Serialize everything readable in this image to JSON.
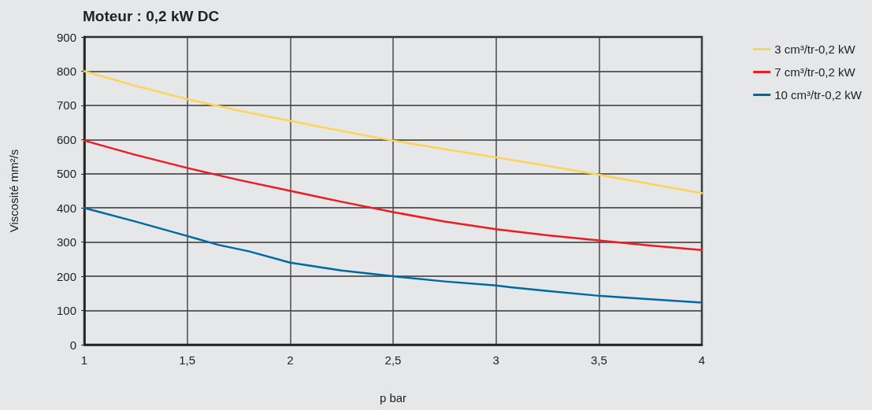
{
  "chart_data": {
    "type": "line",
    "title": "Moteur : 0,2 kW DC",
    "xlabel": "p bar",
    "ylabel": "Viscosité mm²/s",
    "xlim": [
      1,
      4
    ],
    "xticks": [
      1,
      {
        "value": 1.5,
        "label": "1,5"
      },
      2,
      {
        "value": 2.5,
        "label": "2,5"
      },
      3,
      {
        "value": 3.5,
        "label": "3,5"
      },
      4
    ],
    "ylim": [
      0,
      900
    ],
    "yticks": [
      0,
      100,
      200,
      300,
      400,
      500,
      600,
      700,
      800,
      900
    ],
    "grid": true,
    "legend": "top right",
    "marker": "none",
    "line_style": "solid",
    "series": [
      {
        "name": "3 cm³/tr-0,2 kW",
        "color": "#fdd457",
        "x": [
          1,
          1.25,
          1.5,
          1.75,
          2,
          2.25,
          2.5,
          2.75,
          3,
          3.25,
          3.5,
          3.75,
          4
        ],
        "values": [
          800,
          757,
          718,
          685,
          655,
          625,
          597,
          572,
          548,
          523,
          497,
          470,
          443
        ]
      },
      {
        "name": "7 cm³/tr-0,2 kW",
        "color": "#ec1c24",
        "x": [
          1,
          1.25,
          1.5,
          1.75,
          2,
          2.25,
          2.5,
          2.75,
          3,
          3.25,
          3.5,
          3.75,
          4
        ],
        "values": [
          597,
          555,
          517,
          482,
          450,
          418,
          388,
          360,
          338,
          320,
          305,
          290,
          277
        ]
      },
      {
        "name": "10 cm³/tr-0,2 kW",
        "color": "#0069a3",
        "x": [
          1,
          1.25,
          1.5,
          1.65,
          1.8,
          2,
          2.25,
          2.5,
          2.75,
          3,
          3.07,
          3.25,
          3.5,
          3.75,
          4
        ],
        "values": [
          400,
          360,
          318,
          292,
          273,
          240,
          217,
          200,
          185,
          173,
          168,
          157,
          143,
          133,
          123
        ]
      }
    ]
  }
}
